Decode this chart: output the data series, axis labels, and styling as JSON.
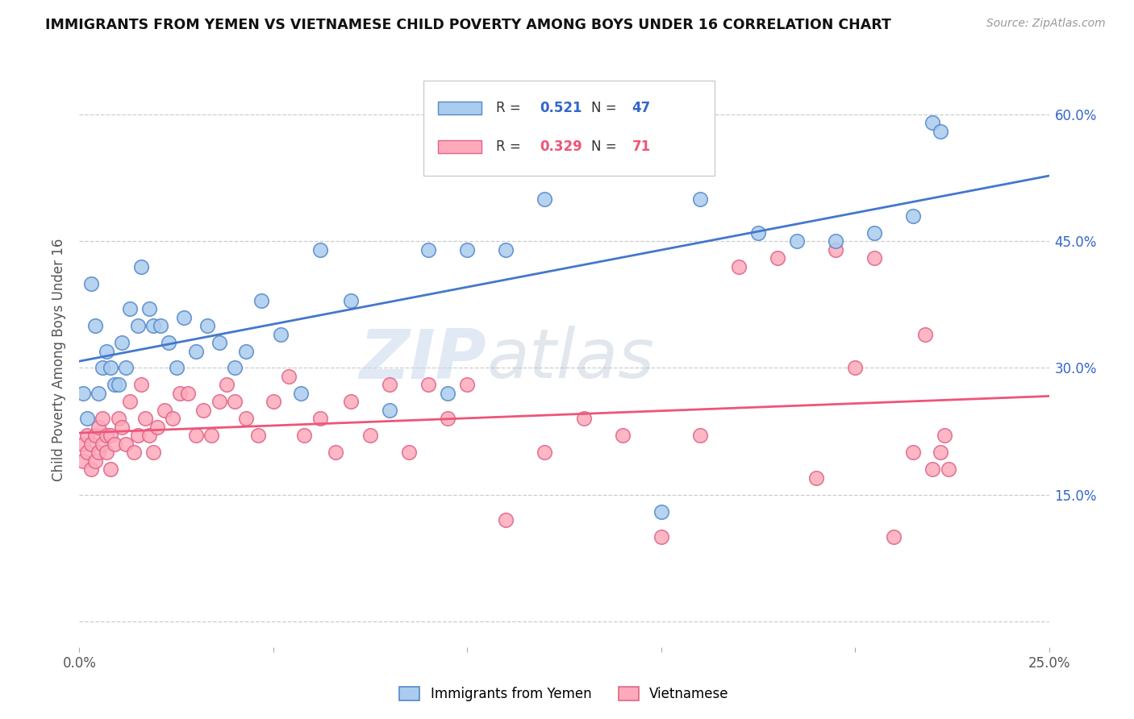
{
  "title": "IMMIGRANTS FROM YEMEN VS VIETNAMESE CHILD POVERTY AMONG BOYS UNDER 16 CORRELATION CHART",
  "source": "Source: ZipAtlas.com",
  "ylabel": "Child Poverty Among Boys Under 16",
  "R_blue": "0.521",
  "N_blue": "47",
  "R_pink": "0.329",
  "N_pink": "71",
  "xlim": [
    0.0,
    0.25
  ],
  "ylim": [
    -0.03,
    0.65
  ],
  "blue_face_color": "#AACCEE",
  "pink_face_color": "#FFAABB",
  "blue_edge_color": "#5588CC",
  "pink_edge_color": "#DD6688",
  "blue_line_color": "#4477CC",
  "pink_line_color": "#EE5577",
  "legend_blue": "Immigrants from Yemen",
  "legend_pink": "Vietnamese",
  "watermark_zip": "ZIP",
  "watermark_atlas": "atlas",
  "blue_x": [
    0.001,
    0.002,
    0.003,
    0.004,
    0.005,
    0.006,
    0.007,
    0.008,
    0.009,
    0.01,
    0.011,
    0.012,
    0.013,
    0.015,
    0.016,
    0.018,
    0.019,
    0.021,
    0.023,
    0.025,
    0.027,
    0.03,
    0.033,
    0.036,
    0.04,
    0.043,
    0.047,
    0.052,
    0.057,
    0.062,
    0.07,
    0.08,
    0.09,
    0.095,
    0.1,
    0.11,
    0.12,
    0.13,
    0.15,
    0.16,
    0.175,
    0.185,
    0.195,
    0.205,
    0.215,
    0.22,
    0.222
  ],
  "blue_y": [
    0.27,
    0.24,
    0.4,
    0.35,
    0.27,
    0.3,
    0.32,
    0.3,
    0.28,
    0.28,
    0.33,
    0.3,
    0.37,
    0.35,
    0.42,
    0.37,
    0.35,
    0.35,
    0.33,
    0.3,
    0.36,
    0.32,
    0.35,
    0.33,
    0.3,
    0.32,
    0.38,
    0.34,
    0.27,
    0.44,
    0.38,
    0.25,
    0.44,
    0.27,
    0.44,
    0.44,
    0.5,
    0.55,
    0.13,
    0.5,
    0.46,
    0.45,
    0.45,
    0.46,
    0.48,
    0.59,
    0.58
  ],
  "pink_x": [
    0.001,
    0.001,
    0.002,
    0.002,
    0.003,
    0.003,
    0.004,
    0.004,
    0.005,
    0.005,
    0.006,
    0.006,
    0.007,
    0.007,
    0.008,
    0.008,
    0.009,
    0.01,
    0.011,
    0.012,
    0.013,
    0.014,
    0.015,
    0.016,
    0.017,
    0.018,
    0.019,
    0.02,
    0.022,
    0.024,
    0.026,
    0.028,
    0.03,
    0.032,
    0.034,
    0.036,
    0.038,
    0.04,
    0.043,
    0.046,
    0.05,
    0.054,
    0.058,
    0.062,
    0.066,
    0.07,
    0.075,
    0.08,
    0.085,
    0.09,
    0.095,
    0.1,
    0.11,
    0.12,
    0.13,
    0.14,
    0.15,
    0.16,
    0.17,
    0.18,
    0.19,
    0.195,
    0.2,
    0.205,
    0.21,
    0.215,
    0.218,
    0.22,
    0.222,
    0.223,
    0.224
  ],
  "pink_y": [
    0.21,
    0.19,
    0.2,
    0.22,
    0.18,
    0.21,
    0.19,
    0.22,
    0.2,
    0.23,
    0.21,
    0.24,
    0.2,
    0.22,
    0.18,
    0.22,
    0.21,
    0.24,
    0.23,
    0.21,
    0.26,
    0.2,
    0.22,
    0.28,
    0.24,
    0.22,
    0.2,
    0.23,
    0.25,
    0.24,
    0.27,
    0.27,
    0.22,
    0.25,
    0.22,
    0.26,
    0.28,
    0.26,
    0.24,
    0.22,
    0.26,
    0.29,
    0.22,
    0.24,
    0.2,
    0.26,
    0.22,
    0.28,
    0.2,
    0.28,
    0.24,
    0.28,
    0.12,
    0.2,
    0.24,
    0.22,
    0.1,
    0.22,
    0.42,
    0.43,
    0.17,
    0.44,
    0.3,
    0.43,
    0.1,
    0.2,
    0.34,
    0.18,
    0.2,
    0.22,
    0.18
  ]
}
